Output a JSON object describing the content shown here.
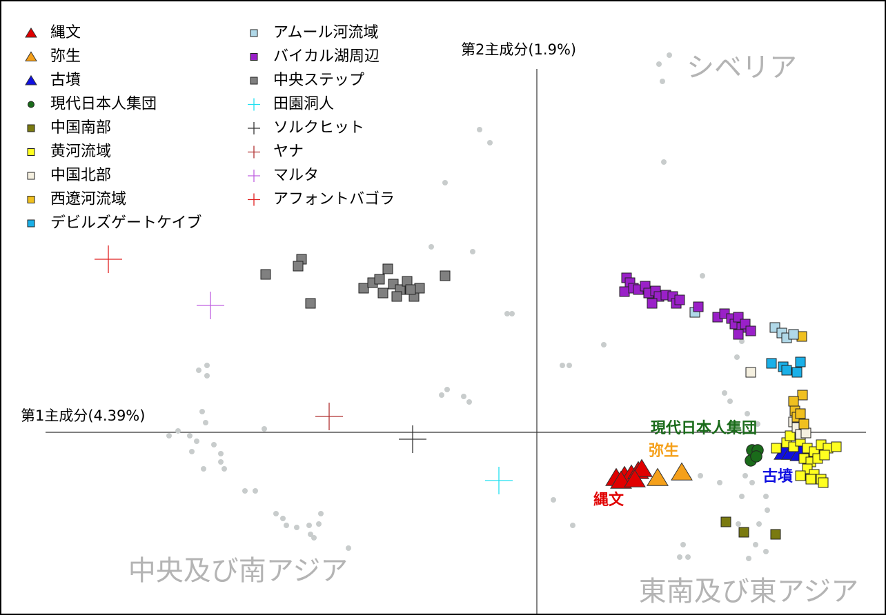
{
  "chart_data": {
    "type": "scatter",
    "x_label": "第1主成分(4.39%)",
    "y_label": "第2主成分(1.9%)",
    "xlim": [
      -770,
      500
    ],
    "ylim": [
      -265,
      625
    ],
    "annotations": [
      {
        "text": "シベリア",
        "color": "#b4b4b4"
      },
      {
        "text": "中央及び南アジア",
        "color": "#b4b4b4"
      },
      {
        "text": "東南及び東アジア",
        "color": "#b4b4b4"
      },
      {
        "text": "現代日本人集団",
        "color": "#1a6b1a"
      },
      {
        "text": "弥生",
        "color": "#f5a01a"
      },
      {
        "text": "縄文",
        "color": "#e00000"
      },
      {
        "text": "古墳",
        "color": "#1010e0"
      }
    ],
    "series": [
      {
        "name": "縄文",
        "marker": "triangle",
        "color": "#e00000",
        "x": [
          115,
          127,
          137,
          147,
          152,
          122,
          142
        ],
        "y": [
          -66,
          -63,
          -61,
          -56,
          -53,
          -70,
          -68
        ]
      },
      {
        "name": "弥生",
        "marker": "triangle",
        "color": "#f5a01a",
        "x": [
          175,
          210
        ],
        "y": [
          -66,
          -58
        ]
      },
      {
        "name": "古墳",
        "marker": "triangle",
        "color": "#1010e0",
        "x": [
          359,
          370,
          382
        ],
        "y": [
          -28,
          -28,
          -30
        ]
      },
      {
        "name": "現代日本人集団",
        "marker": "circle",
        "color": "#1a6b1a",
        "x": [
          312,
          320,
          310,
          318
        ],
        "y": [
          -26,
          -26,
          -41,
          -35
        ]
      },
      {
        "name": "中国南部",
        "marker": "square",
        "color": "#7a7a10",
        "x": [
          274,
          300,
          346
        ],
        "y": [
          -130,
          -145,
          -148
        ]
      },
      {
        "name": "黄河流域",
        "marker": "square",
        "color": "#ffff20",
        "x": [
          347,
          362,
          372,
          382,
          392,
          402,
          412,
          422,
          434,
          387,
          397,
          407,
          417,
          392,
          402,
          412,
          382,
          397,
          415,
          367
        ],
        "y": [
          -23,
          -15,
          -21,
          -13,
          -23,
          -28,
          -18,
          -23,
          -21,
          -38,
          -43,
          -38,
          -33,
          -53,
          -61,
          -68,
          -63,
          -68,
          -73,
          -5
        ]
      },
      {
        "name": "中国北部",
        "marker": "square",
        "color": "#f5f0e0",
        "x": [
          310,
          372,
          377,
          382,
          390
        ],
        "y": [
          87,
          15,
          7,
          -3,
          -1
        ]
      },
      {
        "name": "西遼河流域",
        "marker": "square",
        "color": "#f0c020",
        "x": [
          384,
          385,
          372,
          374,
          377,
          382,
          387
        ],
        "y": [
          139,
          54,
          45,
          31,
          22,
          27,
          12
        ]
      },
      {
        "name": "デビルズゲートケイブ",
        "marker": "square",
        "color": "#1ab0e8",
        "x": [
          340,
          357,
          362,
          377,
          382
        ],
        "y": [
          100,
          95,
          90,
          87,
          102
        ]
      },
      {
        "name": "アムール河流域",
        "marker": "square",
        "color": "#b0d8e8",
        "x": [
          229,
          345,
          355,
          362,
          372
        ],
        "y": [
          174,
          152,
          144,
          137,
          142
        ]
      },
      {
        "name": "バイカル湖周辺",
        "marker": "square",
        "color": "#9a20c8",
        "x": [
          130,
          135,
          127,
          140,
          147,
          157,
          162,
          172,
          177,
          187,
          197,
          202,
          207,
          234,
          262,
          272,
          282,
          287,
          292,
          297,
          302,
          310,
          292,
          167
        ],
        "y": [
          224,
          217,
          204,
          209,
          207,
          212,
          202,
          205,
          197,
          199,
          197,
          187,
          192,
          182,
          167,
          172,
          165,
          157,
          167,
          152,
          157,
          147,
          142,
          187
        ]
      },
      {
        "name": "中央ステップ",
        "marker": "square",
        "color": "#808080",
        "x": [
          -393,
          -341,
          -346,
          -328,
          -133,
          -251,
          -238,
          -228,
          -216,
          -208,
          -198,
          -188,
          -178,
          -170,
          -203,
          -223,
          -183
        ],
        "y": [
          229,
          251,
          241,
          187,
          227,
          209,
          217,
          222,
          237,
          215,
          207,
          219,
          197,
          209,
          197,
          202,
          207
        ]
      },
      {
        "name": "田園洞人",
        "marker": "plus",
        "color": "#20e0f0",
        "x": [
          -55
        ],
        "y": [
          -70
        ]
      },
      {
        "name": "ソルクヒット",
        "marker": "plus",
        "color": "#333333",
        "x": [
          -180
        ],
        "y": [
          -10
        ]
      },
      {
        "name": "ヤナ",
        "marker": "plus",
        "color": "#b03030",
        "x": [
          -301
        ],
        "y": [
          23
        ]
      },
      {
        "name": "マルタ",
        "marker": "plus",
        "color": "#c060e0",
        "x": [
          -473
        ],
        "y": [
          184
        ]
      },
      {
        "name": "アフォントバゴラ",
        "marker": "plus",
        "color": "#e02020",
        "x": [
          -621
        ],
        "y": [
          251
        ]
      },
      {
        "marker": "dot",
        "color": "#c8cccc",
        "x": [
          192,
          177,
          182,
          -83,
          -68,
          184,
          -133,
          -153,
          -93,
          -43,
          -36,
          97,
          37,
          47,
          240,
          297,
          290,
          305,
          272,
          280,
          320,
          -130,
          -138,
          -106,
          -98,
          -478,
          -490,
          -478,
          -485,
          -480,
          -520,
          -533,
          -503,
          -493,
          -468,
          -458,
          -458,
          -500,
          -483,
          -453,
          -423,
          -408,
          -378,
          -368,
          -363,
          -348,
          -330,
          -313,
          -316,
          -328,
          -323,
          -273,
          24,
          52,
          312,
          332,
          334,
          322,
          317,
          332,
          307,
          212,
          207,
          219,
          302,
          237,
          265,
          -395,
          297,
          292
        ],
        "y": [
          547,
          534,
          509,
          439,
          420,
          392,
          362,
          269,
          262,
          172,
          172,
          127,
          97,
          97,
          227,
          132,
          109,
          27,
          57,
          45,
          12,
          62,
          54,
          52,
          44,
          97,
          90,
          82,
          30,
          14,
          2,
          -5,
          -5,
          -13,
          -18,
          -31,
          -43,
          -28,
          -53,
          -53,
          -85,
          -85,
          -118,
          -125,
          -135,
          -138,
          -135,
          -118,
          -133,
          -148,
          -153,
          -168,
          -98,
          -135,
          -73,
          -93,
          -113,
          -133,
          -163,
          -173,
          -183,
          -163,
          -181,
          -181,
          -63,
          -63,
          -73,
          5,
          -93,
          -133
        ]
      }
    ]
  }
}
